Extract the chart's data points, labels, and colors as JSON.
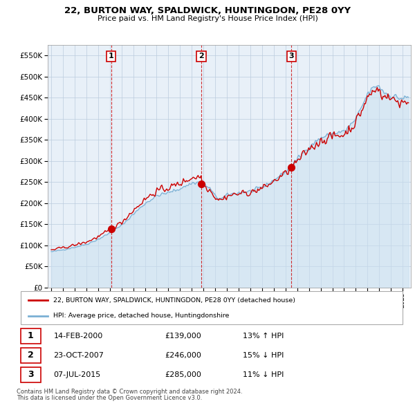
{
  "title": "22, BURTON WAY, SPALDWICK, HUNTINGDON, PE28 0YY",
  "subtitle": "Price paid vs. HM Land Registry's House Price Index (HPI)",
  "sale_dates_num": [
    2000.12,
    2007.81,
    2015.51
  ],
  "sale_prices": [
    139000,
    246000,
    285000
  ],
  "sale_dates_str": [
    "14-FEB-2000",
    "23-OCT-2007",
    "07-JUL-2015"
  ],
  "sale_prices_str": [
    "£139,000",
    "£246,000",
    "£285,000"
  ],
  "sale_hpi_str": [
    "13% ↑ HPI",
    "15% ↓ HPI",
    "11% ↓ HPI"
  ],
  "ylim": [
    0,
    575000
  ],
  "yticks": [
    0,
    50000,
    100000,
    150000,
    200000,
    250000,
    300000,
    350000,
    400000,
    450000,
    500000,
    550000
  ],
  "legend_line1": "22, BURTON WAY, SPALDWICK, HUNTINGDON, PE28 0YY (detached house)",
  "legend_line2": "HPI: Average price, detached house, Huntingdonshire",
  "footer1": "Contains HM Land Registry data © Crown copyright and database right 2024.",
  "footer2": "This data is licensed under the Open Government Licence v3.0.",
  "red_color": "#cc0000",
  "blue_color": "#7ab0d4",
  "blue_fill": "#ddeeff",
  "bg_color": "#ffffff",
  "grid_color": "#cccccc"
}
